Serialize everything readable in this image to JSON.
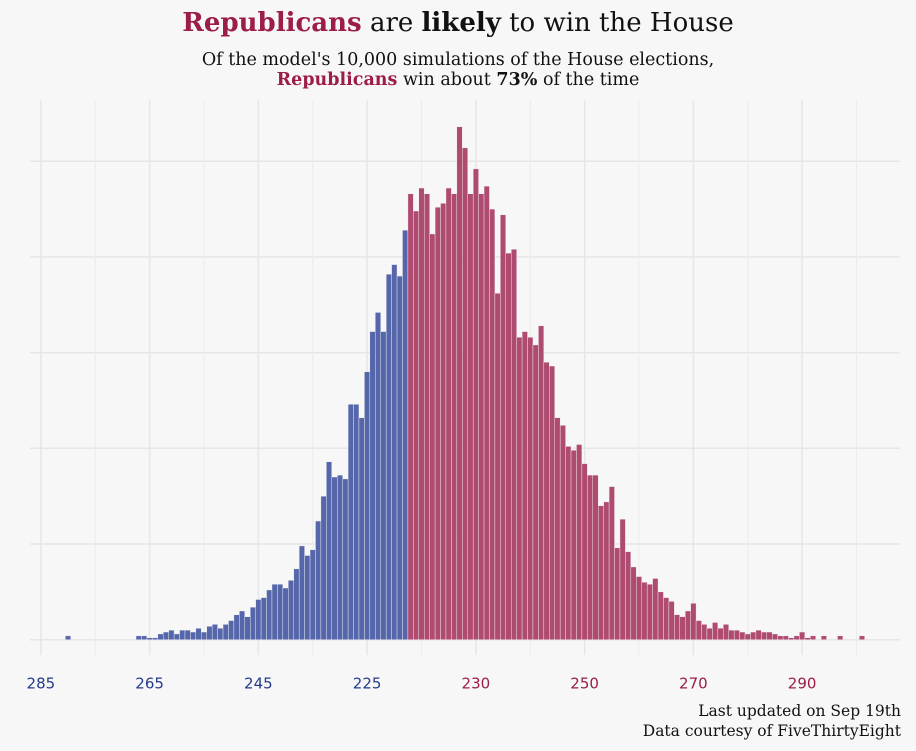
{
  "chart_data": {
    "type": "histogram",
    "title": [
      {
        "text": "Republicans",
        "style": "rep"
      },
      {
        "text": " are ",
        "style": "plain"
      },
      {
        "text": "likely",
        "style": "bold"
      },
      {
        "text": " to win the House",
        "style": "plain"
      }
    ],
    "subtitle": [
      [
        {
          "text": "Of the model's 10,000 simulations of the House elections,",
          "style": "plain"
        }
      ],
      [
        {
          "text": "Republicans",
          "style": "rep"
        },
        {
          "text": " win about ",
          "style": "plain"
        },
        {
          "text": "73%",
          "style": "bold"
        },
        {
          "text": " of the time",
          "style": "plain"
        }
      ]
    ],
    "footer": [
      "Last updated on Sep 19th",
      "Data courtesy of FiveThirtyEight"
    ],
    "majority": 218,
    "colors": {
      "dem": "#4d5ea6",
      "rep": "#ab4169",
      "dem_label": "#253a8c",
      "rep_label": "#9c1c4a"
    },
    "bins": [
      154.5,
      155.5,
      156.5,
      157.5,
      158.5,
      159.5,
      160.5,
      161.5,
      162.5,
      163.5,
      164.5,
      165.5,
      166.5,
      167.5,
      168.5,
      169.5,
      170.5,
      171.5,
      172.5,
      173.5,
      174.5,
      175.5,
      176.5,
      177.5,
      178.5,
      179.5,
      180.5,
      181.5,
      182.5,
      183.5,
      184.5,
      185.5,
      186.5,
      187.5,
      188.5,
      189.5,
      190.5,
      191.5,
      192.5,
      193.5,
      194.5,
      195.5,
      196.5,
      197.5,
      198.5,
      199.5,
      200.5,
      201.5,
      202.5,
      203.5,
      204.5,
      205.5,
      206.5,
      207.5,
      208.5,
      209.5,
      210.5,
      211.5,
      212.5,
      213.5,
      214.5,
      215.5,
      216.5,
      217.5,
      218.5,
      219.5,
      220.5,
      221.5,
      222.5,
      223.5,
      224.5,
      225.5,
      226.5,
      227.5,
      228.5,
      229.5,
      230.5,
      231.5,
      232.5,
      233.5,
      234.5,
      235.5,
      236.5,
      237.5,
      238.5,
      239.5,
      240.5,
      241.5,
      242.5,
      243.5,
      244.5,
      245.5,
      246.5,
      247.5,
      248.5,
      249.5,
      250.5,
      251.5,
      252.5,
      253.5,
      254.5,
      255.5,
      256.5,
      257.5,
      258.5,
      259.5,
      260.5,
      261.5,
      262.5,
      263.5,
      264.5,
      265.5,
      266.5,
      267.5,
      268.5,
      269.5,
      270.5,
      271.5,
      272.5,
      273.5,
      274.5,
      275.5,
      276.5,
      277.5,
      278.5,
      279.5,
      280.5,
      281.5,
      282.5,
      283.5,
      284.5,
      285.5,
      286.5,
      287.5,
      288.5,
      289.5,
      290.5,
      291.5,
      292.5,
      293.5,
      294.5,
      295.5,
      296.5,
      297.5,
      298.5,
      299.5,
      300.5,
      301.5
    ],
    "values": [
      2,
      0,
      0,
      0,
      0,
      0,
      0,
      0,
      0,
      0,
      0,
      0,
      0,
      2,
      2,
      1,
      1,
      3,
      4,
      5,
      3,
      5,
      5,
      4,
      6,
      4,
      7,
      8,
      6,
      8,
      10,
      13,
      15,
      12,
      17,
      21,
      22,
      26,
      29,
      29,
      27,
      31,
      37,
      49,
      44,
      47,
      62,
      75,
      93,
      85,
      86,
      84,
      123,
      123,
      116,
      140,
      161,
      171,
      161,
      191,
      196,
      190,
      214,
      233,
      224,
      236,
      233,
      212,
      226,
      228,
      236,
      233,
      268,
      257,
      233,
      246,
      233,
      237,
      225,
      181,
      222,
      202,
      204,
      158,
      161,
      158,
      154,
      164,
      145,
      143,
      116,
      112,
      101,
      99,
      102,
      92,
      86,
      86,
      70,
      72,
      80,
      48,
      63,
      46,
      38,
      33,
      30,
      29,
      32,
      25,
      22,
      20,
      13,
      12,
      15,
      19,
      10,
      8,
      6,
      9,
      6,
      8,
      5,
      5,
      4,
      3,
      4,
      5,
      4,
      4,
      3,
      2,
      2,
      1,
      2,
      4,
      1,
      2,
      0,
      2,
      0,
      0,
      2,
      0,
      0,
      0,
      2
    ],
    "xlim": [
      148,
      308
    ],
    "xticks": [
      {
        "value": 150,
        "label": "285"
      },
      {
        "value": 170,
        "label": "265"
      },
      {
        "value": 190,
        "label": "245"
      },
      {
        "value": 210,
        "label": "225"
      },
      230,
      250,
      270,
      290
    ],
    "xgrid_minor": [
      160,
      180,
      200,
      220,
      240,
      260,
      280,
      300
    ],
    "ylim": [
      -8,
      282
    ],
    "yticks": [
      0,
      50,
      100,
      150,
      200,
      250
    ],
    "grid": true
  }
}
